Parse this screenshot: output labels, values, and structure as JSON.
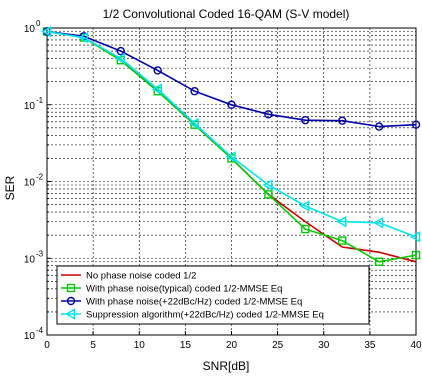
{
  "chart_data": {
    "type": "line",
    "title": "1/2 Convolutional Coded 16-QAM (S-V model)",
    "xlabel": "SNR[dB]",
    "ylabel": "SER",
    "xlim": [
      0,
      40
    ],
    "ylim": [
      0.0001,
      1
    ],
    "yscale": "log",
    "grid": true,
    "legend_position": "bottom-left",
    "x_ticks": [
      0,
      5,
      10,
      15,
      20,
      25,
      30,
      35,
      40
    ],
    "y_ticks": [
      {
        "value": 1,
        "mantissa": "10",
        "exp": "0"
      },
      {
        "value": 0.1,
        "mantissa": "10",
        "exp": "-1"
      },
      {
        "value": 0.01,
        "mantissa": "10",
        "exp": "-2"
      },
      {
        "value": 0.001,
        "mantissa": "10",
        "exp": "-3"
      },
      {
        "value": 0.0001,
        "mantissa": "10",
        "exp": "-4"
      }
    ],
    "series": [
      {
        "name": "No phase noise coded 1/2",
        "color": "#cc0000",
        "marker": "none",
        "x": [
          0,
          4,
          8,
          12,
          16,
          20,
          24,
          28,
          32,
          36,
          40
        ],
        "y": [
          0.9,
          0.75,
          0.38,
          0.15,
          0.055,
          0.02,
          0.0068,
          0.003,
          0.0014,
          0.0012,
          0.0009
        ]
      },
      {
        "name": "With phase noise(typical) coded 1/2-MMSE Eq",
        "color": "#00cc00",
        "marker": "square",
        "x": [
          0,
          4,
          8,
          12,
          16,
          20,
          24,
          28,
          32,
          36,
          40
        ],
        "y": [
          0.9,
          0.75,
          0.38,
          0.15,
          0.055,
          0.02,
          0.0068,
          0.0024,
          0.0017,
          0.0009,
          0.0011
        ]
      },
      {
        "name": "With phase noise(+22dBc/Hz) coded 1/2-MMSE Eq",
        "color": "#0000aa",
        "marker": "circle",
        "x": [
          0,
          4,
          8,
          12,
          16,
          20,
          24,
          28,
          32,
          36,
          40
        ],
        "y": [
          0.9,
          0.78,
          0.5,
          0.28,
          0.15,
          0.1,
          0.075,
          0.063,
          0.062,
          0.052,
          0.055
        ]
      },
      {
        "name": "Suppression algorithm(+22dBc/Hz) coded 1/2-MMSE Eq",
        "color": "#00e5ee",
        "marker": "triangle-left",
        "x": [
          0,
          4,
          8,
          12,
          16,
          20,
          24,
          28,
          32,
          36,
          40
        ],
        "y": [
          0.9,
          0.75,
          0.4,
          0.16,
          0.057,
          0.021,
          0.009,
          0.0048,
          0.003,
          0.0029,
          0.0019
        ]
      }
    ]
  }
}
